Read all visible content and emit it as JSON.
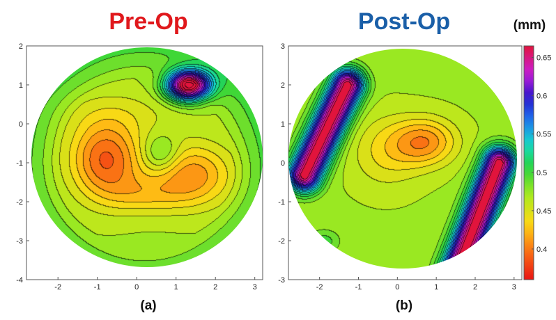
{
  "chart_data": [
    {
      "type": "heatmap",
      "title": "Pre-Op",
      "title_color": "#e0181c",
      "caption": "(a)",
      "xticks": [
        "-2",
        "-1",
        "0",
        "1",
        "2",
        "3"
      ],
      "yticks": [
        "2",
        "1",
        "0",
        "-1",
        "-2",
        "-3",
        "-4"
      ],
      "xlim": [
        -2.8,
        3.2
      ],
      "ylim": [
        -4,
        2
      ],
      "features": [
        {
          "kind": "high",
          "x": -0.8,
          "y": -0.9,
          "value": 0.39
        },
        {
          "kind": "ring-center",
          "x": 0.6,
          "y": -0.75,
          "value": 0.43
        },
        {
          "kind": "high",
          "x": 1.6,
          "y": -1.2,
          "value": 0.4
        },
        {
          "kind": "low",
          "x": 1.3,
          "y": 1.0,
          "value": 0.65
        },
        {
          "kind": "edge",
          "x": 0.2,
          "y": -3.7,
          "value": 0.5
        }
      ]
    },
    {
      "type": "heatmap",
      "title": "Post-Op",
      "title_color": "#1a5fa8",
      "caption": "(b)",
      "xticks": [
        "-2",
        "-1",
        "0",
        "1",
        "2",
        "3"
      ],
      "yticks": [
        "3",
        "2",
        "1",
        "0",
        "-1",
        "-2",
        "-3"
      ],
      "xlim": [
        -2.8,
        3.2
      ],
      "ylim": [
        -3,
        3
      ],
      "features": [
        {
          "kind": "ridge",
          "x": -2.0,
          "y": 0.8,
          "value": 0.66
        },
        {
          "kind": "ridge",
          "x": 2.1,
          "y": -1.4,
          "value": 0.66
        },
        {
          "kind": "high",
          "x": 0.7,
          "y": 0.6,
          "value": 0.41
        },
        {
          "kind": "low",
          "x": -1.9,
          "y": -2.0,
          "value": 0.49
        }
      ]
    }
  ],
  "colorbar": {
    "unit": "(mm)",
    "ticks": [
      "0.65",
      "0.6",
      "0.55",
      "0.5",
      "0.45",
      "0.4"
    ],
    "min": 0.36,
    "max": 0.665
  }
}
